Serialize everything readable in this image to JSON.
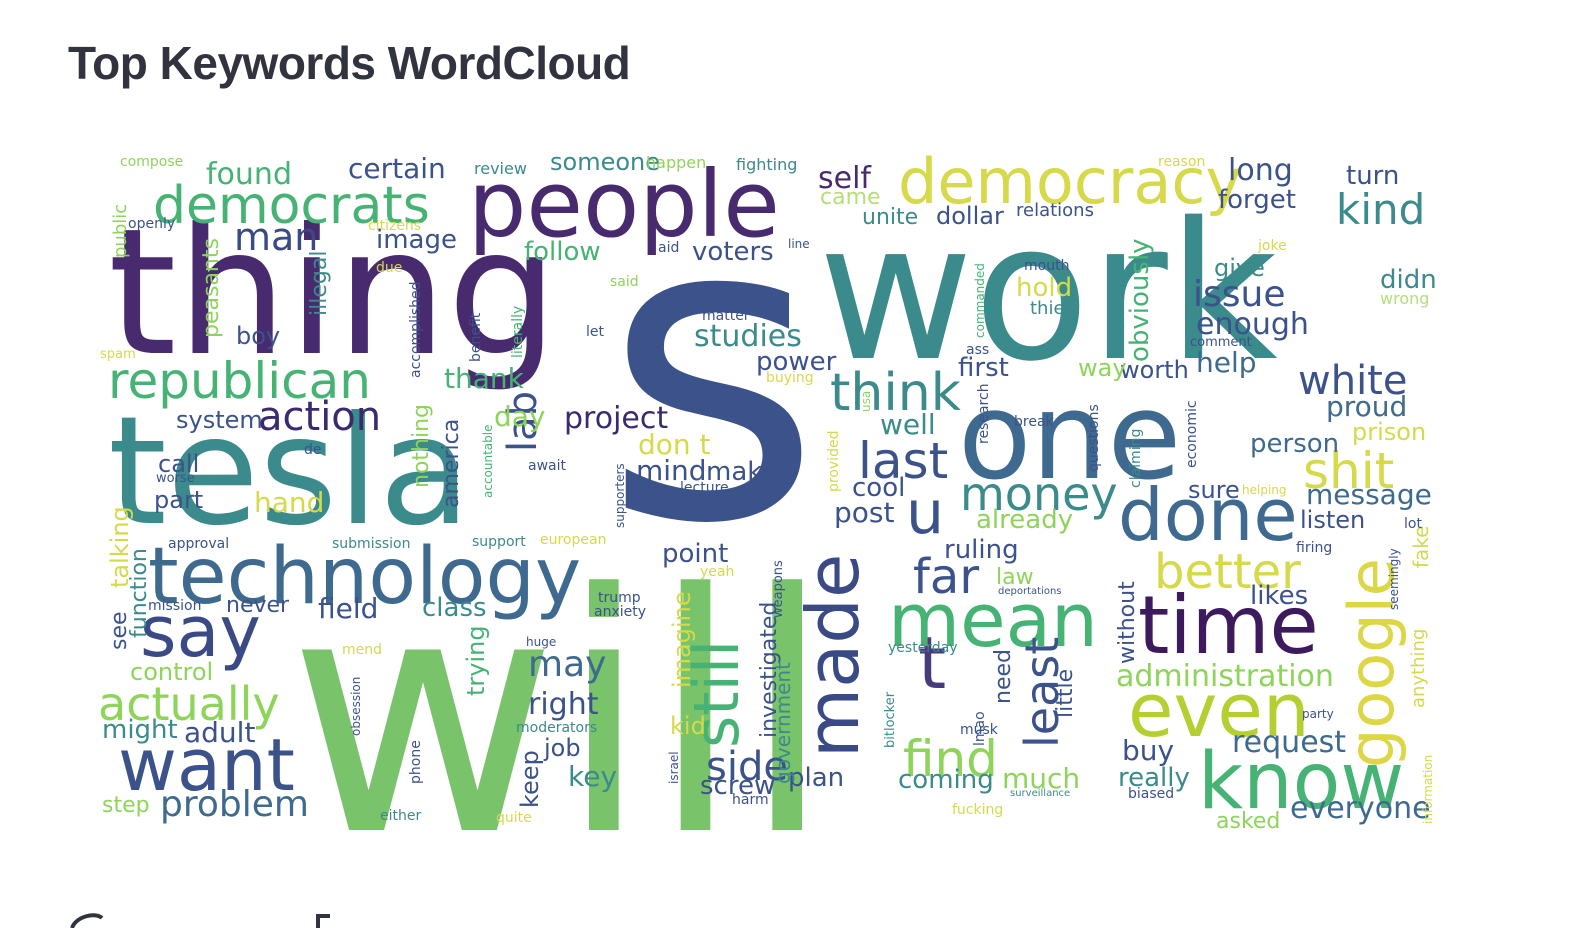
{
  "page": {
    "title": "Top Keywords WordCloud"
  },
  "chart_data": {
    "type": "wordcloud",
    "words": [
      {
        "text": "will",
        "weight": 100,
        "color": "#79c36a"
      },
      {
        "text": "s",
        "weight": 98,
        "color": "#3b528b"
      },
      {
        "text": "work",
        "weight": 92,
        "color": "#3b8a8c"
      },
      {
        "text": "thing",
        "weight": 85,
        "color": "#482a6e"
      },
      {
        "text": "tesla",
        "weight": 85,
        "color": "#3b8a8c"
      },
      {
        "text": "one",
        "weight": 75,
        "color": "#3f6a8f"
      },
      {
        "text": "people",
        "weight": 58,
        "color": "#482a6e"
      },
      {
        "text": "know",
        "weight": 55,
        "color": "#46b374"
      },
      {
        "text": "technology",
        "weight": 52,
        "color": "#3f6a8f"
      },
      {
        "text": "made",
        "weight": 52,
        "color": "#3a4a85"
      },
      {
        "text": "u",
        "weight": 53,
        "color": "#3b528b"
      },
      {
        "text": "t",
        "weight": 55,
        "color": "#473b7e"
      },
      {
        "text": "mean",
        "weight": 52,
        "color": "#46b374"
      },
      {
        "text": "time",
        "weight": 52,
        "color": "#3d1a5e"
      },
      {
        "text": "done",
        "weight": 52,
        "color": "#3f6a8f"
      },
      {
        "text": "even",
        "weight": 52,
        "color": "#b5cf33"
      },
      {
        "text": "google",
        "weight": 50,
        "color": "#ddd645"
      },
      {
        "text": "want",
        "weight": 50,
        "color": "#3b528b"
      },
      {
        "text": "say",
        "weight": 50,
        "color": "#3a4a85"
      },
      {
        "text": "still",
        "weight": 48,
        "color": "#46b374"
      },
      {
        "text": "democracy",
        "weight": 48,
        "color": "#d6d94a"
      },
      {
        "text": "democrats",
        "weight": 45,
        "color": "#46b374"
      },
      {
        "text": "republican",
        "weight": 40,
        "color": "#46b374"
      },
      {
        "text": "think",
        "weight": 42,
        "color": "#3b8a8c"
      },
      {
        "text": "last",
        "weight": 42,
        "color": "#3b528b"
      },
      {
        "text": "find",
        "weight": 42,
        "color": "#8ed45a"
      },
      {
        "text": "least",
        "weight": 40,
        "color": "#3b528b"
      },
      {
        "text": "money",
        "weight": 40,
        "color": "#3b8a8c"
      },
      {
        "text": "better",
        "weight": 40,
        "color": "#d6d94a"
      },
      {
        "text": "shit",
        "weight": 40,
        "color": "#d6d94a"
      },
      {
        "text": "far",
        "weight": 40,
        "color": "#3b528b"
      },
      {
        "text": "actually",
        "weight": 38,
        "color": "#8ed45a"
      },
      {
        "text": "kind",
        "weight": 34,
        "color": "#3b8a8c"
      },
      {
        "text": "white",
        "weight": 32,
        "color": "#3b528b"
      },
      {
        "text": "issue",
        "weight": 32,
        "color": "#3b528b"
      },
      {
        "text": "man",
        "weight": 32,
        "color": "#3a4a85"
      },
      {
        "text": "action",
        "weight": 34,
        "color": "#3a2a6e"
      },
      {
        "text": "side",
        "weight": 34,
        "color": "#3b528b"
      },
      {
        "text": "problem",
        "weight": 30,
        "color": "#3f6a8f"
      },
      {
        "text": "lab",
        "weight": 32,
        "color": "#3b528b"
      },
      {
        "text": "may",
        "weight": 30,
        "color": "#3f6a8f"
      },
      {
        "text": "administration",
        "weight": 26,
        "color": "#8ed45a"
      },
      {
        "text": "request",
        "weight": 24,
        "color": "#3f6a8f"
      },
      {
        "text": "everyone",
        "weight": 24,
        "color": "#3f6a8f"
      },
      {
        "text": "found",
        "weight": 24,
        "color": "#46b374"
      },
      {
        "text": "certain",
        "weight": 22,
        "color": "#3b528b"
      },
      {
        "text": "someone",
        "weight": 20,
        "color": "#3b8a8c"
      },
      {
        "text": "self",
        "weight": 24,
        "color": "#482a6e"
      },
      {
        "text": "came",
        "weight": 20,
        "color": "#b5de7a"
      },
      {
        "text": "unite",
        "weight": 20,
        "color": "#3b8a8c"
      },
      {
        "text": "dollar",
        "weight": 20,
        "color": "#3b528b"
      },
      {
        "text": "relations",
        "weight": 16,
        "color": "#3b528b"
      },
      {
        "text": "forget",
        "weight": 22,
        "color": "#3b528b"
      },
      {
        "text": "long",
        "weight": 26,
        "color": "#3b528b"
      },
      {
        "text": "turn",
        "weight": 22,
        "color": "#3b528b"
      },
      {
        "text": "image",
        "weight": 22,
        "color": "#3b528b"
      },
      {
        "text": "follow",
        "weight": 22,
        "color": "#46b374"
      },
      {
        "text": "voters",
        "weight": 22,
        "color": "#3b528b"
      },
      {
        "text": "studies",
        "weight": 26,
        "color": "#3b8a8c"
      },
      {
        "text": "power",
        "weight": 22,
        "color": "#3b528b"
      },
      {
        "text": "enough",
        "weight": 24,
        "color": "#3b528b"
      },
      {
        "text": "give",
        "weight": 20,
        "color": "#3b8a8c"
      },
      {
        "text": "hold",
        "weight": 22,
        "color": "#d6d94a"
      },
      {
        "text": "thier",
        "weight": 16,
        "color": "#3b8a8c"
      },
      {
        "text": "didn",
        "weight": 22,
        "color": "#3b8a8c"
      },
      {
        "text": "wrong",
        "weight": 14,
        "color": "#b5de7a"
      },
      {
        "text": "help",
        "weight": 24,
        "color": "#3f6a8f"
      },
      {
        "text": "worth",
        "weight": 22,
        "color": "#3b528b"
      },
      {
        "text": "way",
        "weight": 22,
        "color": "#8ed45a"
      },
      {
        "text": "first",
        "weight": 22,
        "color": "#3b528b"
      },
      {
        "text": "proud",
        "weight": 24,
        "color": "#3f6a8f"
      },
      {
        "text": "prison",
        "weight": 22,
        "color": "#d6d94a"
      },
      {
        "text": "person",
        "weight": 22,
        "color": "#3f6a8f"
      },
      {
        "text": "message",
        "weight": 24,
        "color": "#3f6a8f"
      },
      {
        "text": "listen",
        "weight": 22,
        "color": "#3b528b"
      },
      {
        "text": "sure",
        "weight": 22,
        "color": "#3b528b"
      },
      {
        "text": "likes",
        "weight": 22,
        "color": "#3b528b"
      },
      {
        "text": "thank",
        "weight": 24,
        "color": "#46b374"
      },
      {
        "text": "project",
        "weight": 26,
        "color": "#3a2a6e"
      },
      {
        "text": "day",
        "weight": 22,
        "color": "#8ed45a"
      },
      {
        "text": "don t",
        "weight": 24,
        "color": "#d6d94a"
      },
      {
        "text": "mind",
        "weight": 24,
        "color": "#3b528b"
      },
      {
        "text": "make",
        "weight": 22,
        "color": "#3b528b"
      },
      {
        "text": "well",
        "weight": 24,
        "color": "#3b8a8c"
      },
      {
        "text": "cool",
        "weight": 22,
        "color": "#3b528b"
      },
      {
        "text": "post",
        "weight": 24,
        "color": "#3b528b"
      },
      {
        "text": "already",
        "weight": 22,
        "color": "#8ed45a"
      },
      {
        "text": "ruling",
        "weight": 22,
        "color": "#3b528b"
      },
      {
        "text": "law",
        "weight": 20,
        "color": "#8ed45a"
      },
      {
        "text": "point",
        "weight": 22,
        "color": "#3b528b"
      },
      {
        "text": "field",
        "weight": 24,
        "color": "#3b528b"
      },
      {
        "text": "class",
        "weight": 22,
        "color": "#3b8a8c"
      },
      {
        "text": "never",
        "weight": 20,
        "color": "#3b528b"
      },
      {
        "text": "control",
        "weight": 22,
        "color": "#8ed45a"
      },
      {
        "text": "right",
        "weight": 26,
        "color": "#3b528b"
      },
      {
        "text": "adult",
        "weight": 24,
        "color": "#3b528b"
      },
      {
        "text": "might",
        "weight": 22,
        "color": "#3b8a8c"
      },
      {
        "text": "step",
        "weight": 20,
        "color": "#8ed45a"
      },
      {
        "text": "key",
        "weight": 24,
        "color": "#3b8a8c"
      },
      {
        "text": "job",
        "weight": 20,
        "color": "#3b528b"
      },
      {
        "text": "kid",
        "weight": 22,
        "color": "#d6d94a"
      },
      {
        "text": "plan",
        "weight": 22,
        "color": "#3b528b"
      },
      {
        "text": "coming",
        "weight": 22,
        "color": "#3b8a8c"
      },
      {
        "text": "much",
        "weight": 22,
        "color": "#8ed45a"
      },
      {
        "text": "buy",
        "weight": 24,
        "color": "#3b528b"
      },
      {
        "text": "really",
        "weight": 22,
        "color": "#3b8a8c"
      },
      {
        "text": "asked",
        "weight": 20,
        "color": "#8ed45a"
      },
      {
        "text": "screw",
        "weight": 22,
        "color": "#3b528b"
      },
      {
        "text": "call",
        "weight": 22,
        "color": "#3b528b"
      },
      {
        "text": "part",
        "weight": 22,
        "color": "#3b528b"
      },
      {
        "text": "hand",
        "weight": 24,
        "color": "#d6d94a"
      },
      {
        "text": "system",
        "weight": 22,
        "color": "#3b528b"
      },
      {
        "text": "boy",
        "weight": 22,
        "color": "#3b528b"
      },
      {
        "text": "talking",
        "weight": 22,
        "color": "#d6d94a"
      },
      {
        "text": "function",
        "weight": 20,
        "color": "#3b8a8c"
      },
      {
        "text": "see",
        "weight": 20,
        "color": "#3b528b"
      },
      {
        "text": "peasants",
        "weight": 20,
        "color": "#8ed45a"
      },
      {
        "text": "illegal",
        "weight": 20,
        "color": "#3b8a8c"
      },
      {
        "text": "nothing",
        "weight": 20,
        "color": "#8ed45a"
      },
      {
        "text": "america",
        "weight": 20,
        "color": "#3b528b"
      },
      {
        "text": "obviously",
        "weight": 22,
        "color": "#46b374"
      },
      {
        "text": "imagine",
        "weight": 22,
        "color": "#d6d94a"
      },
      {
        "text": "investigated",
        "weight": 20,
        "color": "#3b528b"
      },
      {
        "text": "keep",
        "weight": 20,
        "color": "#3b528b"
      },
      {
        "text": "trying",
        "weight": 20,
        "color": "#46b374"
      },
      {
        "text": "government",
        "weight": 18,
        "color": "#3b8a8c"
      },
      {
        "text": "need",
        "weight": 20,
        "color": "#3b528b"
      },
      {
        "text": "little",
        "weight": 20,
        "color": "#3b528b"
      },
      {
        "text": "without",
        "weight": 20,
        "color": "#3b528b"
      },
      {
        "text": "fake",
        "weight": 18,
        "color": "#d6d94a"
      },
      {
        "text": "anything",
        "weight": 16,
        "color": "#d6d94a"
      },
      {
        "text": "compose",
        "weight": 12,
        "color": "#8ed45a"
      },
      {
        "text": "public",
        "weight": 14,
        "color": "#8ed45a"
      },
      {
        "text": "openly",
        "weight": 12,
        "color": "#3b528b"
      },
      {
        "text": "review",
        "weight": 12,
        "color": "#3b8a8c"
      },
      {
        "text": "happen",
        "weight": 12,
        "color": "#8ed45a"
      },
      {
        "text": "fighting",
        "weight": 12,
        "color": "#3b8a8c"
      },
      {
        "text": "reason",
        "weight": 11,
        "color": "#d6d94a"
      },
      {
        "text": "citizens",
        "weight": 12,
        "color": "#d6d94a"
      },
      {
        "text": "due",
        "weight": 11,
        "color": "#d6d94a"
      },
      {
        "text": "accomplished",
        "weight": 12,
        "color": "#3b528b"
      },
      {
        "text": "benefit",
        "weight": 12,
        "color": "#3b528b"
      },
      {
        "text": "literally",
        "weight": 12,
        "color": "#46b374"
      },
      {
        "text": "said",
        "weight": 12,
        "color": "#8ed45a"
      },
      {
        "text": "aid",
        "weight": 12,
        "color": "#3b528b"
      },
      {
        "text": "line",
        "weight": 11,
        "color": "#3b528b"
      },
      {
        "text": "joke",
        "weight": 12,
        "color": "#d6d94a"
      },
      {
        "text": "mouth",
        "weight": 12,
        "color": "#3b528b"
      },
      {
        "text": "commanded",
        "weight": 11,
        "color": "#46b374"
      },
      {
        "text": "musk",
        "weight": 12,
        "color": "#3b528b"
      },
      {
        "text": "ass",
        "weight": 12,
        "color": "#3b528b"
      },
      {
        "text": "comment",
        "weight": 12,
        "color": "#3b528b"
      },
      {
        "text": "matter",
        "weight": 12,
        "color": "#3b528b"
      },
      {
        "text": "let",
        "weight": 12,
        "color": "#3b528b"
      },
      {
        "text": "spam",
        "weight": 12,
        "color": "#d6d94a"
      },
      {
        "text": "buying",
        "weight": 12,
        "color": "#d6d94a"
      },
      {
        "text": "usa",
        "weight": 11,
        "color": "#8ed45a"
      },
      {
        "text": "research",
        "weight": 12,
        "color": "#3b528b"
      },
      {
        "text": "break",
        "weight": 12,
        "color": "#3b528b"
      },
      {
        "text": "questions",
        "weight": 12,
        "color": "#3b528b"
      },
      {
        "text": "claiming",
        "weight": 12,
        "color": "#3b8a8c"
      },
      {
        "text": "economic",
        "weight": 12,
        "color": "#3b528b"
      },
      {
        "text": "de",
        "weight": 12,
        "color": "#3b528b"
      },
      {
        "text": "accountable",
        "weight": 11,
        "color": "#46b374"
      },
      {
        "text": "await",
        "weight": 12,
        "color": "#3b528b"
      },
      {
        "text": "supporters",
        "weight": 11,
        "color": "#3b528b"
      },
      {
        "text": "lecture",
        "weight": 12,
        "color": "#3b528b"
      },
      {
        "text": "provided",
        "weight": 12,
        "color": "#d6d94a"
      },
      {
        "text": "worse",
        "weight": 11,
        "color": "#3b528b"
      },
      {
        "text": "helping",
        "weight": 11,
        "color": "#d6d94a"
      },
      {
        "text": "lot",
        "weight": 12,
        "color": "#3b528b"
      },
      {
        "text": "approval",
        "weight": 12,
        "color": "#3b528b"
      },
      {
        "text": "submission",
        "weight": 12,
        "color": "#3b8a8c"
      },
      {
        "text": "support",
        "weight": 12,
        "color": "#3b8a8c"
      },
      {
        "text": "european",
        "weight": 12,
        "color": "#d6d94a"
      },
      {
        "text": "yeah",
        "weight": 12,
        "color": "#d6d94a"
      },
      {
        "text": "firing",
        "weight": 12,
        "color": "#3b528b"
      },
      {
        "text": "seemingly",
        "weight": 11,
        "color": "#3b528b"
      },
      {
        "text": "weapons",
        "weight": 12,
        "color": "#3b528b"
      },
      {
        "text": "deportations",
        "weight": 10,
        "color": "#3b528b"
      },
      {
        "text": "mission",
        "weight": 12,
        "color": "#3b528b"
      },
      {
        "text": "trump",
        "weight": 12,
        "color": "#3b528b"
      },
      {
        "text": "anxiety",
        "weight": 12,
        "color": "#3b528b"
      },
      {
        "text": "huge",
        "weight": 11,
        "color": "#3b528b"
      },
      {
        "text": "mend",
        "weight": 12,
        "color": "#d6d94a"
      },
      {
        "text": "yesterday",
        "weight": 12,
        "color": "#3b8a8c"
      },
      {
        "text": "obsession",
        "weight": 11,
        "color": "#3b528b"
      },
      {
        "text": "moderators",
        "weight": 12,
        "color": "#3b8a8c"
      },
      {
        "text": "bitlocker",
        "weight": 11,
        "color": "#3b8a8c"
      },
      {
        "text": "lmao",
        "weight": 12,
        "color": "#3b528b"
      },
      {
        "text": "party",
        "weight": 11,
        "color": "#3b528b"
      },
      {
        "text": "phone",
        "weight": 12,
        "color": "#3b528b"
      },
      {
        "text": "israel",
        "weight": 11,
        "color": "#3b528b"
      },
      {
        "text": "harm",
        "weight": 12,
        "color": "#3b528b"
      },
      {
        "text": "surveillance",
        "weight": 10,
        "color": "#3b8a8c"
      },
      {
        "text": "fucking",
        "weight": 12,
        "color": "#d6d94a"
      },
      {
        "text": "biased",
        "weight": 12,
        "color": "#3b528b"
      },
      {
        "text": "either",
        "weight": 12,
        "color": "#3b8a8c"
      },
      {
        "text": "quite",
        "weight": 12,
        "color": "#d6d94a"
      },
      {
        "text": "information",
        "weight": 12,
        "color": "#d6d94a"
      }
    ]
  }
}
